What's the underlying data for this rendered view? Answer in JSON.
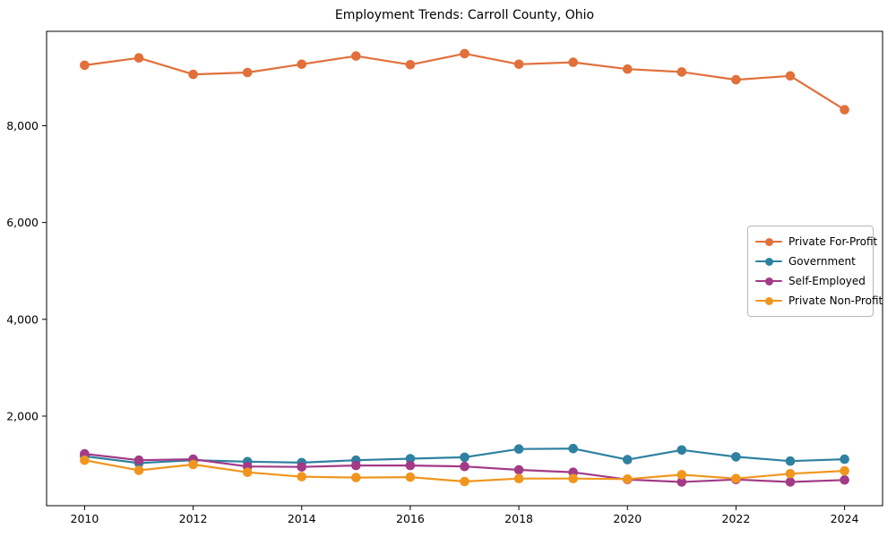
{
  "title": "Employment Trends: Carroll County, Ohio",
  "chart_data": {
    "type": "line",
    "title": "Employment Trends: Carroll County, Ohio",
    "xlabel": "",
    "ylabel": "",
    "x": [
      2010,
      2011,
      2012,
      2013,
      2014,
      2015,
      2016,
      2017,
      2018,
      2019,
      2020,
      2021,
      2022,
      2023,
      2024
    ],
    "series": [
      {
        "name": "Private For-Profit",
        "color": "#E1703B",
        "values": [
          9250,
          9400,
          9060,
          9100,
          9270,
          9440,
          9260,
          9490,
          9270,
          9310,
          9170,
          9110,
          8950,
          9030,
          8330
        ]
      },
      {
        "name": "Government",
        "color": "#2E81A0",
        "values": [
          1170,
          1030,
          1090,
          1060,
          1040,
          1090,
          1120,
          1150,
          1320,
          1330,
          1100,
          1300,
          1160,
          1070,
          1110
        ]
      },
      {
        "name": "Self-Employed",
        "color": "#A23A87",
        "values": [
          1220,
          1090,
          1110,
          960,
          950,
          980,
          980,
          960,
          890,
          840,
          690,
          640,
          690,
          640,
          680
        ]
      },
      {
        "name": "Private Non-Profit",
        "color": "#F0961E",
        "values": [
          1090,
          880,
          1000,
          840,
          750,
          730,
          740,
          650,
          710,
          710,
          700,
          790,
          710,
          810,
          870
        ]
      }
    ],
    "xticks": [
      2010,
      2012,
      2014,
      2016,
      2018,
      2020,
      2022,
      2024
    ],
    "xtick_labels": [
      "2010",
      "2012",
      "2014",
      "2016",
      "2018",
      "2020",
      "2022",
      "2024"
    ],
    "yticks": [
      2000,
      4000,
      6000,
      8000
    ],
    "ytick_labels": [
      "2,000",
      "4,000",
      "6,000",
      "8,000"
    ],
    "xlim": [
      2009.3,
      2024.7
    ],
    "ylim": [
      150,
      9950
    ],
    "grid": false,
    "legend_position": "center right",
    "marker": "circle",
    "background_color": "#ffffff",
    "axis_color": "#000000"
  }
}
